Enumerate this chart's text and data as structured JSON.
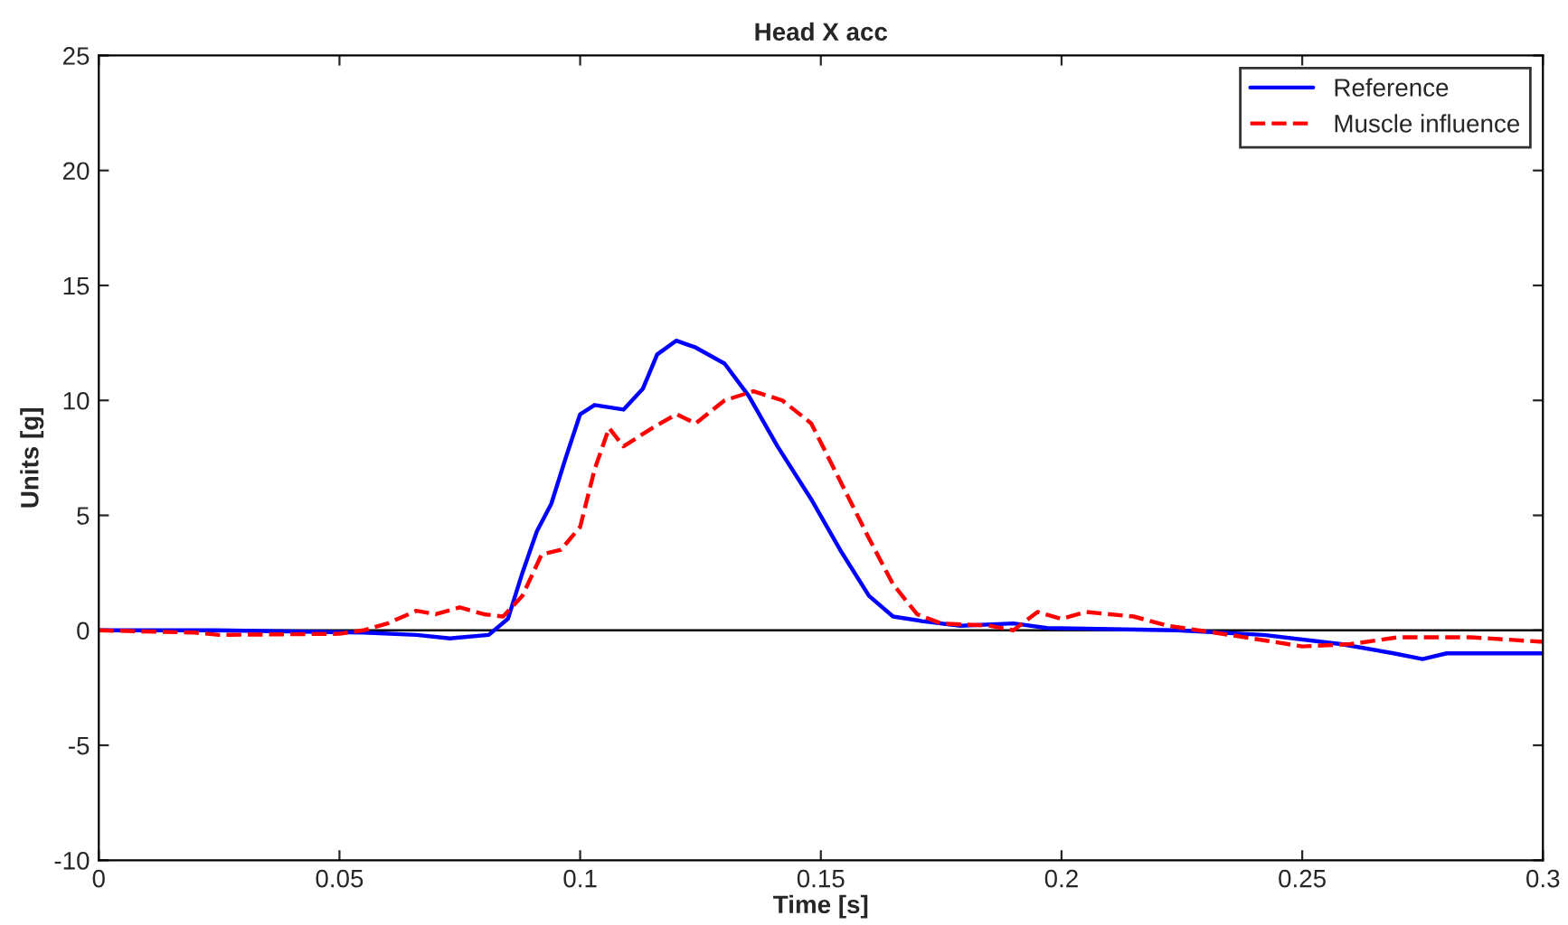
{
  "chart_data": {
    "type": "line",
    "title": "Head X acc",
    "xlabel": "Time [s]",
    "ylabel": "Units [g]",
    "xlim": [
      0,
      0.3
    ],
    "xticks": [
      0,
      0.05,
      0.1,
      0.15,
      0.2,
      0.25,
      0.3
    ],
    "ylim": [
      -10,
      25
    ],
    "yticks": [
      -10,
      -5,
      0,
      5,
      10,
      15,
      20,
      25
    ],
    "grid": false,
    "legend": "top right",
    "ref_lines": [
      {
        "axis": "y",
        "value": 0,
        "color": "#000000",
        "line_style": "solid"
      }
    ],
    "series": [
      {
        "name": "Reference",
        "color": "#0000ff",
        "line_style": "solid",
        "x": [
          0,
          0.024,
          0.055,
          0.066,
          0.073,
          0.081,
          0.085,
          0.088,
          0.091,
          0.094,
          0.097,
          0.1,
          0.103,
          0.109,
          0.113,
          0.116,
          0.12,
          0.124,
          0.13,
          0.135,
          0.141,
          0.148,
          0.154,
          0.16,
          0.165,
          0.171,
          0.179,
          0.19,
          0.197,
          0.224,
          0.242,
          0.258,
          0.269,
          0.275,
          0.28,
          0.3
        ],
        "values": [
          0,
          0,
          -0.1,
          -0.2,
          -0.35,
          -0.2,
          0.5,
          2.5,
          4.3,
          5.5,
          7.5,
          9.4,
          9.8,
          9.6,
          10.5,
          12,
          12.6,
          12.3,
          11.6,
          10.2,
          8,
          5.7,
          3.5,
          1.5,
          0.6,
          0.4,
          0.2,
          0.3,
          0.1,
          0,
          -0.2,
          -0.6,
          -1.0,
          -1.25,
          -1.0,
          -1.0
        ]
      },
      {
        "name": "Muscle influence",
        "color": "#ff0000",
        "line_style": "dashed",
        "x": [
          0,
          0.02,
          0.025,
          0.05,
          0.055,
          0.06,
          0.066,
          0.07,
          0.075,
          0.08,
          0.084,
          0.088,
          0.092,
          0.096,
          0.1,
          0.103,
          0.106,
          0.109,
          0.115,
          0.12,
          0.124,
          0.13,
          0.136,
          0.142,
          0.148,
          0.154,
          0.16,
          0.165,
          0.17,
          0.175,
          0.185,
          0.19,
          0.195,
          0.2,
          0.205,
          0.215,
          0.222,
          0.235,
          0.25,
          0.26,
          0.27,
          0.285,
          0.3
        ],
        "values": [
          0,
          -0.1,
          -0.2,
          -0.15,
          0,
          0.3,
          0.85,
          0.7,
          1.0,
          0.7,
          0.6,
          1.5,
          3.3,
          3.5,
          4.5,
          7,
          8.8,
          8.0,
          8.8,
          9.4,
          9.0,
          10.0,
          10.4,
          10.0,
          9.0,
          6.5,
          4,
          2,
          0.7,
          0.3,
          0.2,
          0.0,
          0.8,
          0.5,
          0.8,
          0.6,
          0.2,
          -0.2,
          -0.7,
          -0.6,
          -0.3,
          -0.3,
          -0.5
        ]
      }
    ]
  }
}
